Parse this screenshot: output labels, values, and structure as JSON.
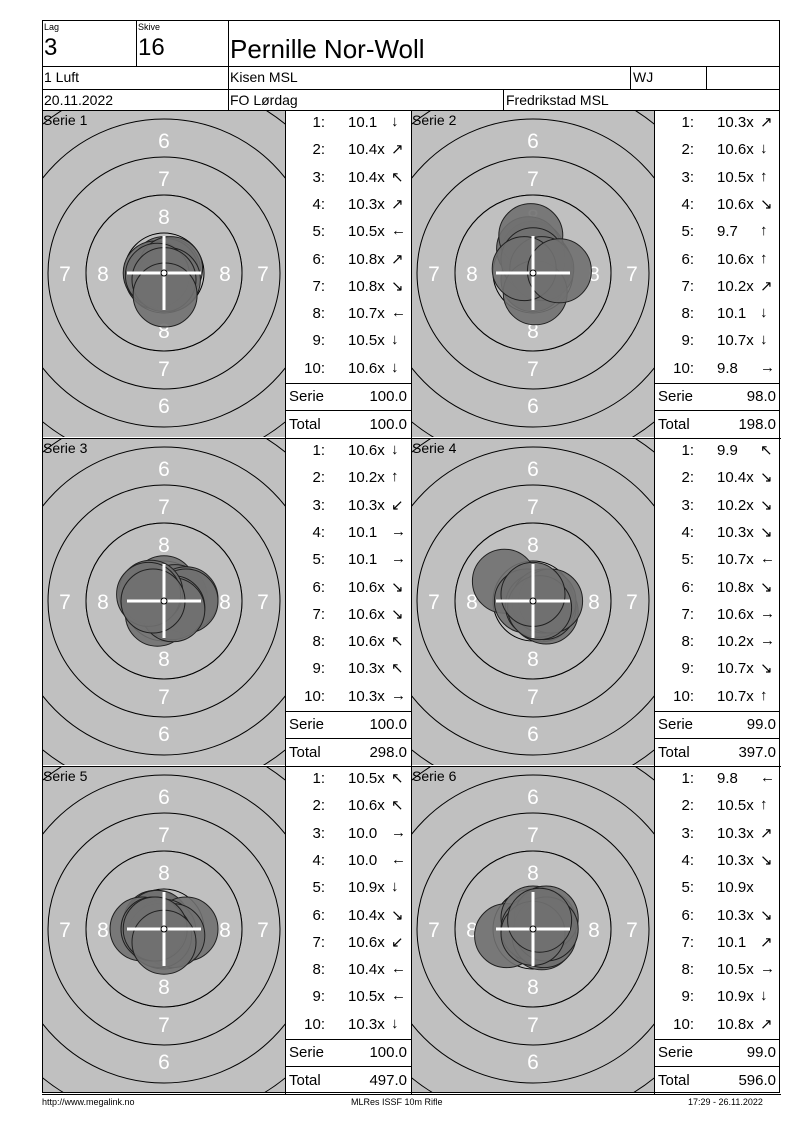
{
  "header": {
    "lag_label": "Lag",
    "lag_value": "3",
    "skive_label": "Skive",
    "skive_value": "16",
    "name": "Pernille Nor-Woll",
    "class": "1 Luft",
    "club": "Kisen MSL",
    "badge": "WJ",
    "date": "20.11.2022",
    "event": "FO Lørdag",
    "venue": "Fredrikstad MSL"
  },
  "ring_labels": {
    "r6": "6",
    "r7": "7",
    "r8": "8"
  },
  "sum_labels": {
    "serie": "Serie",
    "total": "Total"
  },
  "series": [
    {
      "label": "Serie 1",
      "shots": [
        {
          "n": "1:",
          "v": "10.1",
          "a": "↓"
        },
        {
          "n": "2:",
          "v": "10.4x",
          "a": "↗"
        },
        {
          "n": "3:",
          "v": "10.4x",
          "a": "↖"
        },
        {
          "n": "4:",
          "v": "10.3x",
          "a": "↗"
        },
        {
          "n": "5:",
          "v": "10.5x",
          "a": "←"
        },
        {
          "n": "6:",
          "v": "10.8x",
          "a": "↗"
        },
        {
          "n": "7:",
          "v": "10.8x",
          "a": "↘"
        },
        {
          "n": "8:",
          "v": "10.7x",
          "a": "←"
        },
        {
          "n": "9:",
          "v": "10.5x",
          "a": "↓"
        },
        {
          "n": "10:",
          "v": "10.6x",
          "a": "↓"
        }
      ],
      "serie": "100.0",
      "total": "100.0",
      "hits": [
        [
          0,
          0.2
        ],
        [
          0.2,
          0.15
        ],
        [
          -0.3,
          -0.2
        ],
        [
          0.1,
          0.1
        ],
        [
          -0.4,
          0
        ],
        [
          0.3,
          0.2
        ],
        [
          0.2,
          -0.3
        ],
        [
          -0.3,
          -0.1
        ],
        [
          0,
          -0.3
        ],
        [
          0.05,
          -1.0
        ]
      ]
    },
    {
      "label": "Serie 2",
      "shots": [
        {
          "n": "1:",
          "v": "10.3x",
          "a": "↗"
        },
        {
          "n": "2:",
          "v": "10.6x",
          "a": "↓"
        },
        {
          "n": "3:",
          "v": "10.5x",
          "a": "↑"
        },
        {
          "n": "4:",
          "v": "10.6x",
          "a": "↘"
        },
        {
          "n": "5:",
          "v": "9.7",
          "a": "↑"
        },
        {
          "n": "6:",
          "v": "10.6x",
          "a": "↑"
        },
        {
          "n": "7:",
          "v": "10.2x",
          "a": "↗"
        },
        {
          "n": "8:",
          "v": "10.1",
          "a": "↓"
        },
        {
          "n": "9:",
          "v": "10.7x",
          "a": "↓"
        },
        {
          "n": "10:",
          "v": "9.8",
          "a": "→"
        }
      ],
      "serie": "98.0",
      "total": "198.0",
      "hits": [
        [
          0.3,
          0.4
        ],
        [
          0,
          -0.3
        ],
        [
          0,
          0.9
        ],
        [
          -0.2,
          1.1
        ],
        [
          -0.1,
          1.7
        ],
        [
          0,
          0.6
        ],
        [
          0.4,
          0.2
        ],
        [
          0.1,
          -0.9
        ],
        [
          -0.4,
          0.2
        ],
        [
          1.2,
          0.1
        ]
      ]
    },
    {
      "label": "Serie 3",
      "shots": [
        {
          "n": "1:",
          "v": "10.6x",
          "a": "↓"
        },
        {
          "n": "2:",
          "v": "10.2x",
          "a": "↑"
        },
        {
          "n": "3:",
          "v": "10.3x",
          "a": "↙"
        },
        {
          "n": "4:",
          "v": "10.1",
          "a": "→"
        },
        {
          "n": "5:",
          "v": "10.1",
          "a": "→"
        },
        {
          "n": "6:",
          "v": "10.6x",
          "a": "↘"
        },
        {
          "n": "7:",
          "v": "10.6x",
          "a": "↘"
        },
        {
          "n": "8:",
          "v": "10.6x",
          "a": "↖"
        },
        {
          "n": "9:",
          "v": "10.3x",
          "a": "↖"
        },
        {
          "n": "10:",
          "v": "10.3x",
          "a": "→"
        }
      ],
      "serie": "100.0",
      "total": "298.0",
      "hits": [
        [
          0,
          0.6
        ],
        [
          -0.3,
          -0.6
        ],
        [
          0.5,
          0.2
        ],
        [
          1.0,
          0.1
        ],
        [
          1.0,
          0
        ],
        [
          0.4,
          -0.3
        ],
        [
          0.4,
          -0.4
        ],
        [
          -0.6,
          0.4
        ],
        [
          -0.7,
          0.3
        ],
        [
          -0.5,
          0
        ]
      ]
    },
    {
      "label": "Serie 4",
      "shots": [
        {
          "n": "1:",
          "v": "9.9",
          "a": "↖"
        },
        {
          "n": "2:",
          "v": "10.4x",
          "a": "↘"
        },
        {
          "n": "3:",
          "v": "10.2x",
          "a": "↘"
        },
        {
          "n": "4:",
          "v": "10.3x",
          "a": "↘"
        },
        {
          "n": "5:",
          "v": "10.7x",
          "a": "←"
        },
        {
          "n": "6:",
          "v": "10.8x",
          "a": "↘"
        },
        {
          "n": "7:",
          "v": "10.6x",
          "a": "→"
        },
        {
          "n": "8:",
          "v": "10.2x",
          "a": "→"
        },
        {
          "n": "9:",
          "v": "10.7x",
          "a": "↘"
        },
        {
          "n": "10:",
          "v": "10.7x",
          "a": "↑"
        }
      ],
      "serie": "99.0",
      "total": "397.0",
      "hits": [
        [
          -1.3,
          0.9
        ],
        [
          0.4,
          -0.4
        ],
        [
          0.6,
          -0.5
        ],
        [
          0.5,
          -0.3
        ],
        [
          -0.3,
          0
        ],
        [
          0.2,
          -0.2
        ],
        [
          0.5,
          0
        ],
        [
          0.8,
          0
        ],
        [
          0.3,
          -0.3
        ],
        [
          0,
          0.3
        ]
      ]
    },
    {
      "label": "Serie 5",
      "shots": [
        {
          "n": "1:",
          "v": "10.5x",
          "a": "↖"
        },
        {
          "n": "2:",
          "v": "10.6x",
          "a": "↖"
        },
        {
          "n": "3:",
          "v": "10.0",
          "a": "→"
        },
        {
          "n": "4:",
          "v": "10.0",
          "a": "←"
        },
        {
          "n": "5:",
          "v": "10.9x",
          "a": "↓"
        },
        {
          "n": "6:",
          "v": "10.4x",
          "a": "↘"
        },
        {
          "n": "7:",
          "v": "10.6x",
          "a": "↙"
        },
        {
          "n": "8:",
          "v": "10.4x",
          "a": "←"
        },
        {
          "n": "9:",
          "v": "10.5x",
          "a": "←"
        },
        {
          "n": "10:",
          "v": "10.3x",
          "a": "↓"
        }
      ],
      "serie": "100.0",
      "total": "497.0",
      "hits": [
        [
          -0.4,
          0.3
        ],
        [
          -0.3,
          0.3
        ],
        [
          1.0,
          0
        ],
        [
          -1.0,
          0
        ],
        [
          0,
          -0.1
        ],
        [
          0.4,
          -0.3
        ],
        [
          -0.2,
          -0.3
        ],
        [
          -0.5,
          0
        ],
        [
          -0.4,
          0
        ],
        [
          0,
          -0.6
        ]
      ]
    },
    {
      "label": "Serie 6",
      "shots": [
        {
          "n": "1:",
          "v": "9.8",
          "a": "←"
        },
        {
          "n": "2:",
          "v": "10.5x",
          "a": "↑"
        },
        {
          "n": "3:",
          "v": "10.3x",
          "a": "↗"
        },
        {
          "n": "4:",
          "v": "10.3x",
          "a": "↘"
        },
        {
          "n": "5:",
          "v": "10.9x",
          "a": ""
        },
        {
          "n": "6:",
          "v": "10.3x",
          "a": "↘"
        },
        {
          "n": "7:",
          "v": "10.1",
          "a": "↗"
        },
        {
          "n": "8:",
          "v": "10.5x",
          "a": "→"
        },
        {
          "n": "9:",
          "v": "10.9x",
          "a": "↓"
        },
        {
          "n": "10:",
          "v": "10.8x",
          "a": "↗"
        }
      ],
      "serie": "99.0",
      "total": "596.0",
      "hits": [
        [
          -1.2,
          -0.3
        ],
        [
          0,
          0.5
        ],
        [
          0.5,
          0.3
        ],
        [
          0.4,
          -0.4
        ],
        [
          0,
          0
        ],
        [
          0.5,
          -0.3
        ],
        [
          0.6,
          0.5
        ],
        [
          0.6,
          0
        ],
        [
          0,
          -0.2
        ],
        [
          0.3,
          0.4
        ]
      ]
    }
  ],
  "footer": {
    "left": "http://www.megalink.no",
    "center": "MLRes ISSF 10m Rifle",
    "right": "17:29 - 26.11.2022"
  },
  "colors": {
    "target_bg": "#c0c0c0",
    "hit_fill": "#707070",
    "ring": "#000000"
  }
}
